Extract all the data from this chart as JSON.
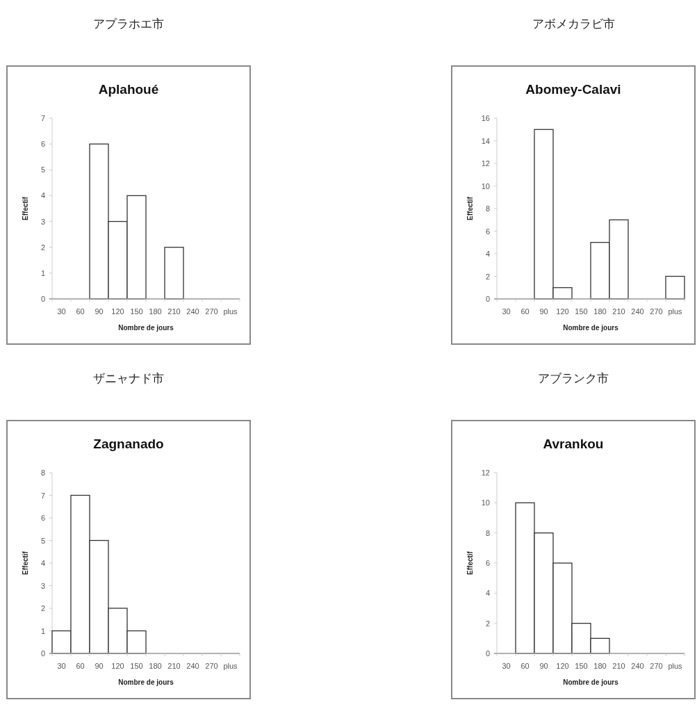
{
  "chart_data": [
    {
      "type": "bar",
      "title": "アプラホエ市",
      "subtitle": "Aplahoué",
      "xlabel": "Nombre de jours",
      "ylabel": "Effectif",
      "categories": [
        "30",
        "60",
        "90",
        "120",
        "150",
        "180",
        "210",
        "240",
        "270",
        "plus"
      ],
      "values": [
        0,
        0,
        6,
        3,
        4,
        0,
        2,
        0,
        0,
        0
      ],
      "color": "#ffffff",
      "ylim": [
        0,
        7
      ],
      "yticks": [
        0,
        1,
        2,
        3,
        4,
        5,
        6,
        7
      ]
    },
    {
      "type": "bar",
      "title": "アボメカラビ市",
      "subtitle": "Abomey-Calavi",
      "xlabel": "Nombre de jours",
      "ylabel": "Effectif",
      "categories": [
        "30",
        "60",
        "90",
        "120",
        "150",
        "180",
        "210",
        "240",
        "270",
        "plus"
      ],
      "values": [
        0,
        0,
        15,
        1,
        0,
        5,
        7,
        0,
        0,
        2
      ],
      "color": "#ffffff",
      "ylim": [
        0,
        16
      ],
      "yticks": [
        0,
        2,
        4,
        6,
        8,
        10,
        12,
        14,
        16
      ]
    },
    {
      "type": "bar",
      "title": "ザニャナド市",
      "subtitle": "Zagnanado",
      "xlabel": "Nombre de jours",
      "ylabel": "Effectif",
      "categories": [
        "30",
        "60",
        "90",
        "120",
        "150",
        "180",
        "210",
        "240",
        "270",
        "plus"
      ],
      "values": [
        1,
        7,
        5,
        2,
        1,
        0,
        0,
        0,
        0,
        0
      ],
      "color": "#ffffff",
      "ylim": [
        0,
        8
      ],
      "yticks": [
        0,
        1,
        2,
        3,
        4,
        5,
        6,
        7,
        8
      ]
    },
    {
      "type": "bar",
      "title": "アブランク市",
      "subtitle": "Avrankou",
      "xlabel": "Nombre de jours",
      "ylabel": "Effectif",
      "categories": [
        "30",
        "60",
        "90",
        "120",
        "150",
        "180",
        "210",
        "240",
        "270",
        "plus"
      ],
      "values": [
        0,
        10,
        8,
        6,
        2,
        1,
        0,
        0,
        0,
        0
      ],
      "color": "#ffffff",
      "ylim": [
        0,
        12
      ],
      "yticks": [
        0,
        2,
        4,
        6,
        8,
        10,
        12
      ]
    }
  ]
}
